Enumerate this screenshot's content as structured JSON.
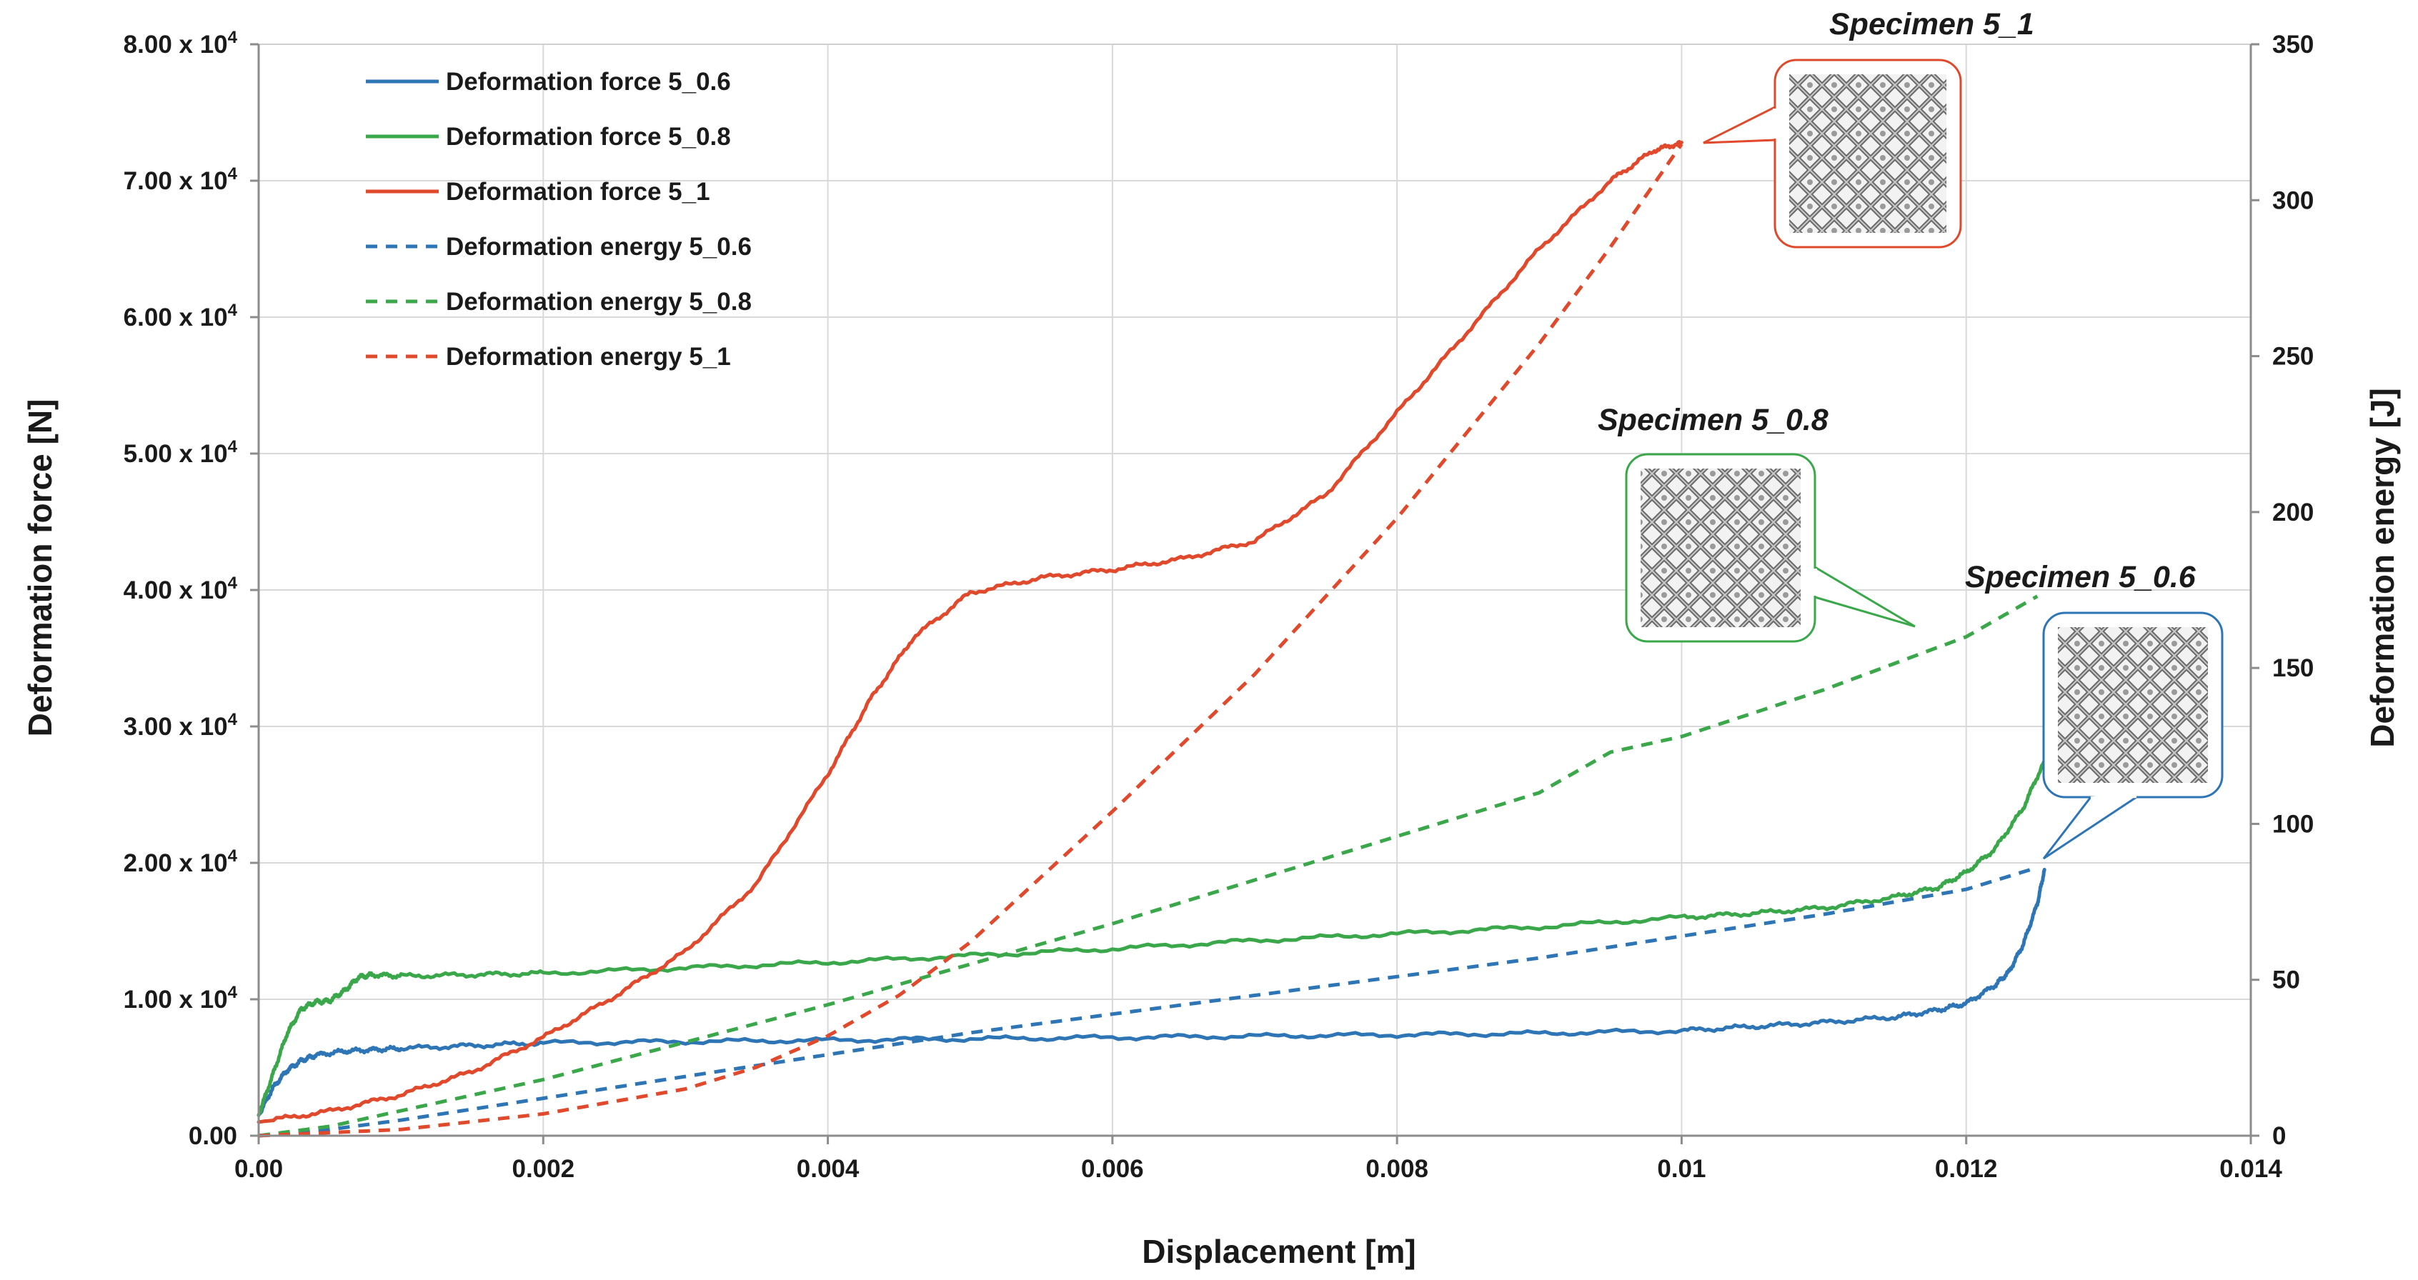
{
  "chart_data": {
    "type": "line",
    "title": "",
    "xlabel": "Displacement [m]",
    "ylabel": "Deformation force [N]",
    "y2label": "Deformation energy [J]",
    "xlim": [
      0,
      0.014
    ],
    "ylim": [
      0,
      80000
    ],
    "y2lim": [
      0,
      350
    ],
    "x_ticks": [
      0,
      0.002,
      0.004,
      0.006,
      0.008,
      0.01,
      0.012,
      0.014
    ],
    "x_tick_labels": [
      "0.00",
      "0.002",
      "0.004",
      "0.006",
      "0.008",
      "0.01",
      "0.012",
      "0.014"
    ],
    "y_ticks": [
      0,
      10000,
      20000,
      30000,
      40000,
      50000,
      60000,
      70000,
      80000
    ],
    "y_tick_labels": [
      "0.00",
      "1.00 x 10",
      "2.00 x 10",
      "3.00 x 10",
      "4.00 x 10",
      "5.00 x 10",
      "6.00 x 10",
      "7.00 x 10",
      "8.00 x 10"
    ],
    "y_tick_exponent": "4",
    "y2_ticks": [
      0,
      50,
      100,
      150,
      200,
      250,
      300,
      350
    ],
    "y2_tick_labels": [
      "0",
      "50",
      "100",
      "150",
      "200",
      "250",
      "300",
      "350"
    ],
    "grid": true,
    "legend_position": "top-left",
    "series": [
      {
        "name": "Deformation force 5_0.6",
        "axis": "left",
        "color": "#2e75b6",
        "dash": "solid",
        "x": [
          0,
          0.0001,
          0.0002,
          0.0003,
          0.0004,
          0.0006,
          0.0008,
          0.001,
          0.0015,
          0.002,
          0.003,
          0.004,
          0.005,
          0.006,
          0.007,
          0.008,
          0.009,
          0.01,
          0.0105,
          0.011,
          0.0115,
          0.0118,
          0.012,
          0.0122,
          0.0123,
          0.0124,
          0.0125,
          0.01255
        ],
        "values": [
          1500,
          3500,
          4800,
          5500,
          5900,
          6200,
          6300,
          6400,
          6600,
          6800,
          6900,
          7000,
          7100,
          7200,
          7300,
          7400,
          7500,
          7700,
          8000,
          8300,
          8700,
          9200,
          9700,
          11000,
          12000,
          14000,
          17000,
          19500
        ]
      },
      {
        "name": "Deformation force 5_0.8",
        "axis": "left",
        "color": "#3aa84a",
        "dash": "solid",
        "x": [
          0,
          0.0001,
          0.0002,
          0.0003,
          0.0004,
          0.0005,
          0.0006,
          0.0007,
          0.0008,
          0.001,
          0.0015,
          0.002,
          0.003,
          0.004,
          0.005,
          0.006,
          0.007,
          0.008,
          0.009,
          0.01,
          0.0105,
          0.011,
          0.0115,
          0.0118,
          0.012,
          0.0122,
          0.0124,
          0.01255
        ],
        "values": [
          1500,
          4500,
          7500,
          9300,
          9800,
          9900,
          10600,
          11600,
          11800,
          11700,
          11800,
          11900,
          12300,
          12700,
          13200,
          13700,
          14300,
          14800,
          15300,
          16000,
          16300,
          16700,
          17500,
          18200,
          19300,
          21000,
          24000,
          27500
        ]
      },
      {
        "name": "Deformation force 5_1",
        "axis": "left",
        "color": "#e0492b",
        "dash": "solid",
        "x": [
          0,
          0.0005,
          0.001,
          0.0015,
          0.002,
          0.0025,
          0.003,
          0.0035,
          0.004,
          0.0043,
          0.0046,
          0.005,
          0.0055,
          0.006,
          0.0065,
          0.007,
          0.0075,
          0.008,
          0.0085,
          0.009,
          0.0095,
          0.0098,
          0.01
        ],
        "values": [
          1000,
          1800,
          3000,
          4700,
          7200,
          10200,
          13500,
          18500,
          26500,
          32000,
          36500,
          39800,
          40900,
          41500,
          42300,
          43600,
          47000,
          53000,
          59000,
          65000,
          70000,
          72200,
          72800
        ]
      },
      {
        "name": "Deformation energy 5_0.6",
        "axis": "right",
        "color": "#2e75b6",
        "dash": "dashed",
        "x": [
          0,
          0.0005,
          0.001,
          0.002,
          0.003,
          0.004,
          0.005,
          0.006,
          0.007,
          0.008,
          0.009,
          0.01,
          0.011,
          0.012,
          0.0125
        ],
        "values": [
          0,
          2,
          5,
          12,
          19,
          26,
          33,
          39,
          45,
          51,
          57,
          64,
          71,
          79,
          86
        ]
      },
      {
        "name": "Deformation energy 5_0.8",
        "axis": "right",
        "color": "#3aa84a",
        "dash": "dashed",
        "x": [
          0,
          0.0005,
          0.001,
          0.002,
          0.003,
          0.004,
          0.005,
          0.006,
          0.007,
          0.008,
          0.009,
          0.0095,
          0.01,
          0.011,
          0.012,
          0.0125
        ],
        "values": [
          0,
          3,
          8,
          18,
          30,
          42,
          55,
          68,
          82,
          96,
          110,
          123,
          128,
          143,
          160,
          173
        ]
      },
      {
        "name": "Deformation energy 5_1",
        "axis": "right",
        "color": "#e0492b",
        "dash": "dashed",
        "x": [
          0,
          0.001,
          0.002,
          0.003,
          0.0035,
          0.004,
          0.0045,
          0.005,
          0.006,
          0.007,
          0.008,
          0.009,
          0.0095,
          0.01
        ],
        "values": [
          0,
          2,
          7,
          15,
          22,
          32,
          45,
          62,
          104,
          148,
          198,
          254,
          285,
          318
        ]
      }
    ],
    "annotations": [
      {
        "label": "Specimen 5_1",
        "color": "#e0492b",
        "points_to": {
          "x": 0.0101,
          "y": 72000
        }
      },
      {
        "label": "Specimen 5_0.8",
        "color": "#3aa84a",
        "points_to": {
          "x": 0.0116,
          "y": 37000
        }
      },
      {
        "label": "Specimen 5_0.6",
        "color": "#2e75b6",
        "points_to": {
          "x": 0.01255,
          "y": 19500
        }
      }
    ]
  }
}
